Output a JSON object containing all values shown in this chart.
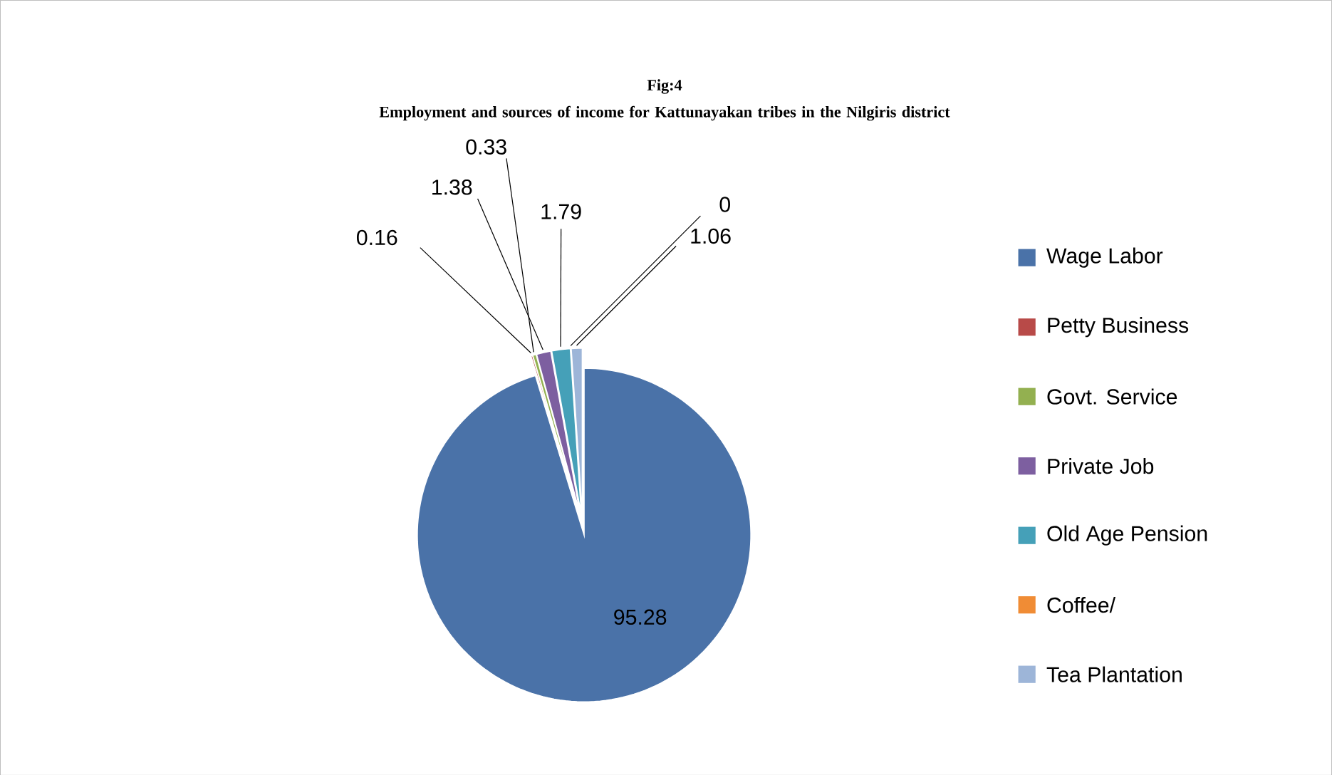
{
  "chart_data": {
    "type": "pie",
    "title": "Fig:4",
    "subtitle": "Employment and sources of income for Kattunayakan tribes in the Nilgiris district",
    "categories": [
      "Wage Labor",
      "Petty Business",
      "Govt. Service",
      "Private Job",
      "Old Age Pension",
      "Coffee/",
      "Tea Plantation"
    ],
    "values": [
      95.28,
      0.16,
      0.33,
      1.38,
      1.79,
      0,
      1.06
    ],
    "colors": [
      "#4a72a8",
      "#b84a48",
      "#93b050",
      "#7d5fa0",
      "#45a0b8",
      "#f08c35",
      "#9db5d8"
    ],
    "value_labels": [
      "95.28",
      "0.16",
      "0.33",
      "1.38",
      "1.79",
      "0",
      "1.06"
    ],
    "legend": "right"
  }
}
